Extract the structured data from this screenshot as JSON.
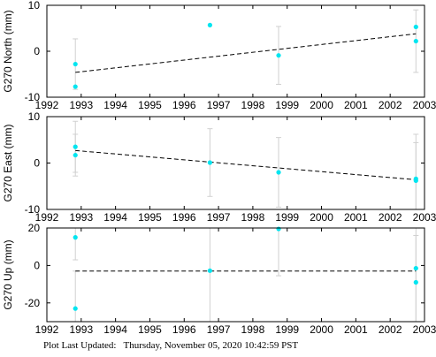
{
  "footer": {
    "label": "Plot Last Updated:",
    "timestamp": "Thursday, November 05, 2020 10:42:59 PST"
  },
  "colors": {
    "points": "#00e5f0",
    "errorbars": "#d0d0d0",
    "trend": "#000000",
    "axes": "#000000"
  },
  "chart_data": [
    {
      "type": "scatter",
      "ylabel": "G270 North (mm)",
      "xlim": [
        1992,
        2003
      ],
      "ylim": [
        -10,
        10
      ],
      "xticks": [
        1992,
        1993,
        1994,
        1995,
        1996,
        1997,
        1998,
        1999,
        2000,
        2001,
        2002,
        2003
      ],
      "yticks": [
        -10,
        0,
        10
      ],
      "points": [
        {
          "x": 1992.83,
          "y": -2.8,
          "err": 5.5
        },
        {
          "x": 1992.83,
          "y": -7.7,
          "err": 0
        },
        {
          "x": 1996.75,
          "y": 5.7,
          "err": 0
        },
        {
          "x": 1998.75,
          "y": -0.9,
          "err": 6.3
        },
        {
          "x": 2002.75,
          "y": 5.3,
          "err": 0
        },
        {
          "x": 2002.75,
          "y": 2.2,
          "err": 6.8
        }
      ],
      "trend": {
        "x": [
          1992.83,
          2002.75
        ],
        "y": [
          -4.6,
          3.8
        ]
      }
    },
    {
      "type": "scatter",
      "ylabel": "G270 East (mm)",
      "xlim": [
        1992,
        2003
      ],
      "ylim": [
        -10,
        10
      ],
      "xticks": [
        1992,
        1993,
        1994,
        1995,
        1996,
        1997,
        1998,
        1999,
        2000,
        2001,
        2002,
        2003
      ],
      "yticks": [
        -10,
        0,
        10
      ],
      "points": [
        {
          "x": 1992.83,
          "y": 3.5,
          "err": 5.5
        },
        {
          "x": 1992.83,
          "y": 1.7,
          "err": 4.5
        },
        {
          "x": 1996.75,
          "y": 0.1,
          "err": 7.3
        },
        {
          "x": 1998.75,
          "y": -2.0,
          "err": 7.5
        },
        {
          "x": 2002.75,
          "y": -3.4,
          "err": 9.6
        },
        {
          "x": 2002.75,
          "y": -3.8,
          "err": 8.2
        }
      ],
      "trend": {
        "x": [
          1992.83,
          2002.75
        ],
        "y": [
          2.7,
          -3.6
        ]
      }
    },
    {
      "type": "scatter",
      "ylabel": "G270 Up (mm)",
      "xlim": [
        1992,
        2003
      ],
      "ylim": [
        -30,
        20
      ],
      "xticks": [
        1992,
        1993,
        1994,
        1995,
        1996,
        1997,
        1998,
        1999,
        2000,
        2001,
        2002,
        2003
      ],
      "yticks": [
        -20,
        0,
        20
      ],
      "points": [
        {
          "x": 1992.83,
          "y": 15.0,
          "err": 12
        },
        {
          "x": 1992.83,
          "y": -23.0,
          "err": 20
        },
        {
          "x": 1996.75,
          "y": -2.8,
          "err": 30
        },
        {
          "x": 1998.75,
          "y": 19.5,
          "err": 25
        },
        {
          "x": 2002.75,
          "y": -1.5,
          "err": 30
        },
        {
          "x": 2002.75,
          "y": -9.0,
          "err": 25
        }
      ],
      "trend": {
        "x": [
          1992.83,
          2002.75
        ],
        "y": [
          -3.0,
          -3.0
        ]
      }
    }
  ]
}
